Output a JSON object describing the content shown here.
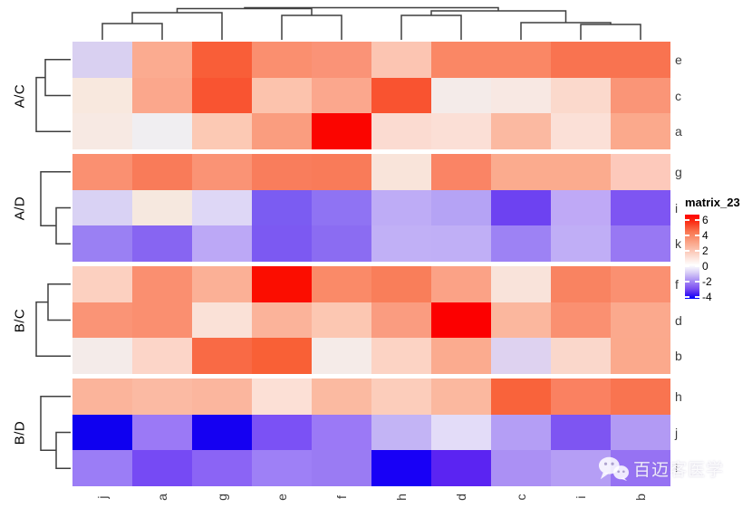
{
  "chart_data": {
    "type": "heatmap",
    "columns": [
      "j",
      "a",
      "g",
      "e",
      "f",
      "h",
      "d",
      "c",
      "i",
      "b"
    ],
    "rows": [
      "e",
      "c",
      "a",
      "g",
      "i",
      "k",
      "f",
      "d",
      "b",
      "h",
      "j",
      "l"
    ],
    "row_groups": [
      {
        "label": "A/C",
        "rows": [
          "e",
          "c",
          "a"
        ],
        "dendrogram": [
          [
            "e",
            "c"
          ],
          "a"
        ]
      },
      {
        "label": "A/D",
        "rows": [
          "g",
          "i",
          "k"
        ],
        "dendrogram": [
          "g",
          [
            "i",
            "k"
          ]
        ]
      },
      {
        "label": "B/C",
        "rows": [
          "f",
          "d",
          "b"
        ],
        "dendrogram": [
          [
            "f",
            "d"
          ],
          "b"
        ]
      },
      {
        "label": "B/D",
        "rows": [
          "h",
          "j",
          "l"
        ],
        "dendrogram": [
          "h",
          [
            "j",
            "l"
          ]
        ]
      }
    ],
    "column_dendrogram": [
      [
        [
          [
            "j",
            "a"
          ],
          "g"
        ],
        [
          "e",
          "f"
        ]
      ],
      [
        [
          "h",
          "d"
        ],
        [
          "c",
          [
            "i",
            "b"
          ]
        ]
      ]
    ],
    "values": [
      [
        -0.7,
        1.8,
        3.9,
        2.5,
        2.3,
        1.2,
        2.7,
        2.7,
        3.3,
        3.3
      ],
      [
        0.4,
        1.9,
        4.1,
        1.3,
        1.9,
        4.1,
        0.3,
        0.4,
        0.8,
        2.3
      ],
      [
        0.4,
        0.1,
        1.2,
        2.2,
        6.2,
        0.8,
        0.7,
        1.5,
        0.6,
        1.9
      ],
      [
        2.4,
        3.0,
        2.3,
        2.9,
        3.0,
        0.6,
        2.7,
        1.8,
        1.8,
        1.2
      ],
      [
        -0.8,
        0.4,
        -0.7,
        -2.7,
        -2.2,
        -1.3,
        -1.5,
        -3.0,
        -1.3,
        -2.6
      ],
      [
        -2.0,
        -2.5,
        -1.3,
        -2.7,
        -2.3,
        -1.2,
        -1.2,
        -1.9,
        -1.2,
        -2.1
      ],
      [
        1.0,
        2.4,
        1.7,
        6.0,
        2.5,
        2.9,
        2.0,
        0.6,
        2.8,
        2.4
      ],
      [
        2.3,
        2.4,
        0.7,
        1.6,
        1.2,
        2.1,
        6.4,
        1.5,
        2.4,
        1.8
      ],
      [
        0.3,
        0.9,
        3.6,
        3.8,
        0.3,
        1.0,
        1.8,
        -0.9,
        0.9,
        1.8
      ],
      [
        1.6,
        1.4,
        1.5,
        0.7,
        1.4,
        1.1,
        1.5,
        3.8,
        2.8,
        3.4
      ],
      [
        -4.3,
        -2.0,
        -4.3,
        -2.9,
        -2.0,
        -1.1,
        -0.5,
        -1.5,
        -2.6,
        -1.5
      ],
      [
        -2.0,
        -3.0,
        -2.5,
        -1.9,
        -2.0,
        -4.4,
        -3.5,
        -1.7,
        -1.4,
        -2.1
      ]
    ],
    "cell_colors": [
      [
        "#d9d0f1",
        "#fbab90",
        "#f95e38",
        "#fa8f6f",
        "#fa9377",
        "#fcc5b2",
        "#fa8765",
        "#fa8765",
        "#f97350",
        "#f97350"
      ],
      [
        "#f8e8de",
        "#fba78c",
        "#f95431",
        "#fcc3ad",
        "#fba78d",
        "#f95330",
        "#f4ebe9",
        "#f8e8e3",
        "#fbd9cc",
        "#fa9577"
      ],
      [
        "#f7e9e3",
        "#f0eef1",
        "#fcc9b4",
        "#fa9d7f",
        "#fb0500",
        "#fbdbd1",
        "#fbdfd6",
        "#fbb9a1",
        "#fbe0d7",
        "#fba98c"
      ],
      [
        "#fa9071",
        "#f97b59",
        "#fa9375",
        "#f97d5c",
        "#f97b59",
        "#f9e4da",
        "#fa8465",
        "#fbab8e",
        "#fbab8e",
        "#fdc9bb"
      ],
      [
        "#d9d2f4",
        "#f6e8df",
        "#ded7f6",
        "#7b5cf2",
        "#8f73f3",
        "#beacf6",
        "#b5a3f5",
        "#6d42f1",
        "#bfa9f6",
        "#7e55f2"
      ],
      [
        "#9a80f3",
        "#8765f2",
        "#bca8f6",
        "#7c59f2",
        "#8b6cf2",
        "#c1b0f6",
        "#c0aff6",
        "#9d82f4",
        "#c0aef6",
        "#9878f3"
      ],
      [
        "#fcd0c0",
        "#fa8f70",
        "#fbb096",
        "#fb0d00",
        "#fa8a68",
        "#f97e5a",
        "#fba286",
        "#f9e3da",
        "#f98361",
        "#fa9071"
      ],
      [
        "#fa9476",
        "#fa8f70",
        "#fae1d7",
        "#fbb39a",
        "#fcc7b2",
        "#fa9c80",
        "#fc0000",
        "#fbb79e",
        "#fa9071",
        "#fba98d"
      ],
      [
        "#f4ebe9",
        "#fcd5c8",
        "#f96a45",
        "#f96036",
        "#f5ebe8",
        "#fcd3c4",
        "#fbab8f",
        "#ded2f0",
        "#fad7cb",
        "#fba98c"
      ],
      [
        "#fbb49b",
        "#fbbaa3",
        "#fbb69e",
        "#fce0d6",
        "#fbbaa1",
        "#fccdbb",
        "#fbb89f",
        "#f9633b",
        "#fa8161",
        "#f97450"
      ],
      [
        "#0f00f0",
        "#9b79f6",
        "#1500f2",
        "#7b51f5",
        "#9b79f6",
        "#c3b4f5",
        "#e3dcf8",
        "#b49ef5",
        "#7e55f2",
        "#b29af4"
      ],
      [
        "#9b7df6",
        "#764af4",
        "#8b64f5",
        "#9e80f6",
        "#9a7bf3",
        "#1800f6",
        "#5b24f2",
        "#ab90f4",
        "#b59ef5",
        "#9672f3"
      ]
    ],
    "legend": {
      "title": "matrix_23",
      "ticks": [
        6,
        4,
        2,
        0,
        -2,
        -4
      ],
      "domain": [
        -4,
        0,
        6
      ],
      "min_color": "#0000FF",
      "mid_color": "#FFFFFF",
      "max_color": "#FF0000",
      "position": "right"
    },
    "grid": false
  },
  "watermark": {
    "icon": "wechat-icon",
    "text": "百迈客医学"
  }
}
